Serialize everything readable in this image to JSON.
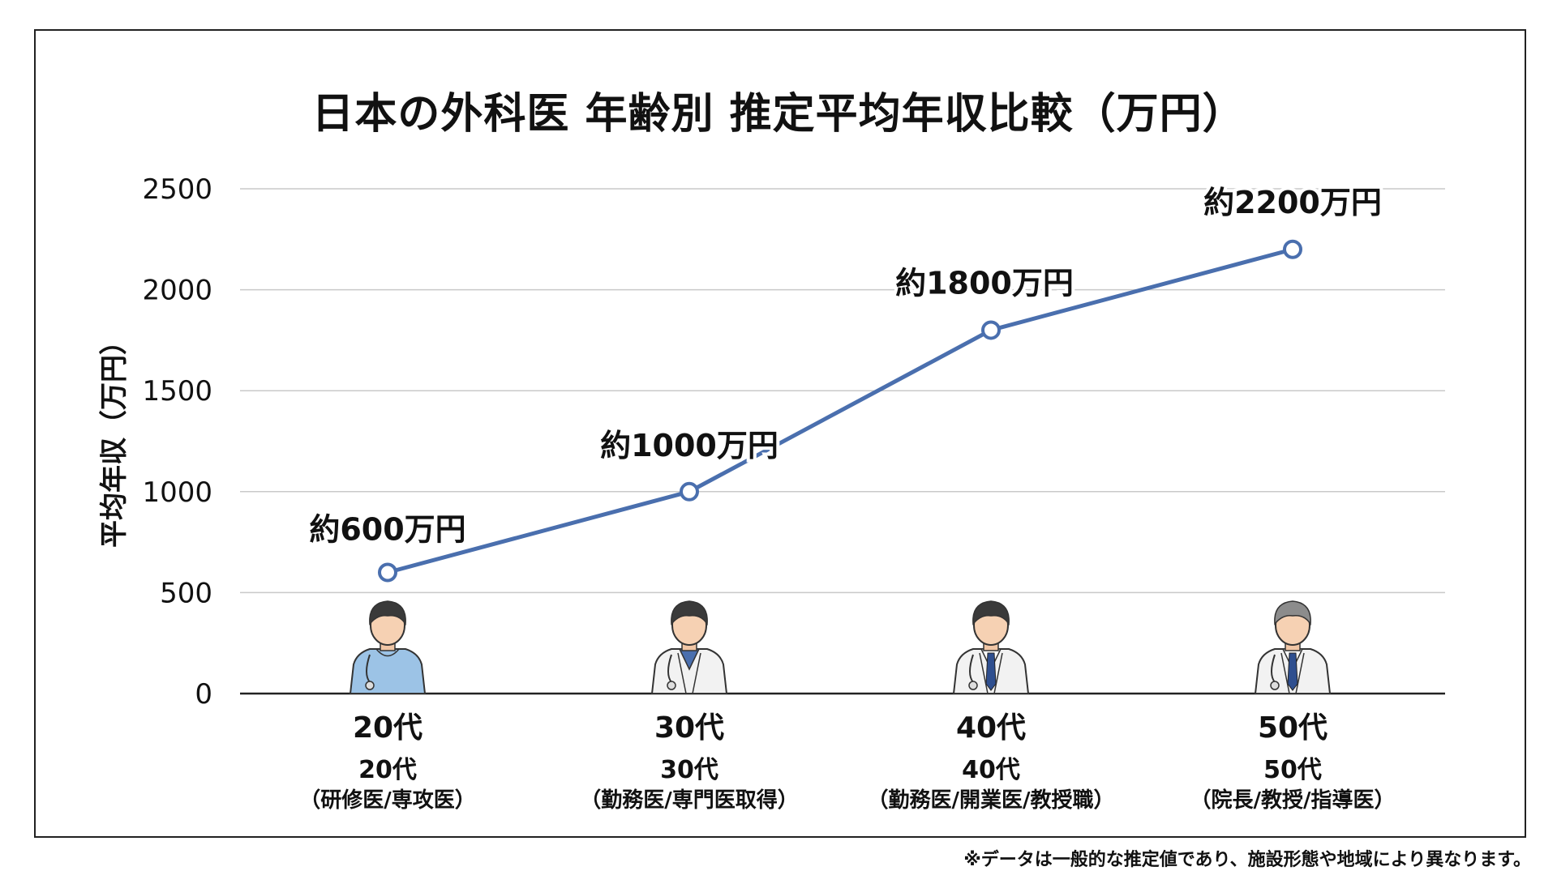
{
  "chart_data": {
    "type": "line",
    "title": "日本の外科医 年齢別 推定平均年収比較（万円）",
    "ylabel": "平均年収（万円）",
    "xlabel": "",
    "ylim": [
      0,
      2500
    ],
    "yticks": [
      0,
      500,
      1000,
      1500,
      2000,
      2500
    ],
    "grid": true,
    "categories": [
      "20代",
      "30代",
      "40代",
      "50代"
    ],
    "category_sublabels": [
      {
        "line1": "20代",
        "line2": "（研修医/専攻医）"
      },
      {
        "line1": "30代",
        "line2": "（勤務医/専門医取得）"
      },
      {
        "line1": "40代",
        "line2": "（勤務医/開業医/教授職）"
      },
      {
        "line1": "50代",
        "line2": "（院長/教授/指導医）"
      }
    ],
    "series": [
      {
        "values": [
          600,
          1000,
          1800,
          2200
        ],
        "data_labels": [
          "約600万円",
          "約1000万円",
          "約1800万円",
          "約2200万円"
        ]
      }
    ],
    "line_color": "#4a6fae",
    "icons": [
      "doctor-young-scrubs-icon",
      "doctor-icon",
      "doctor-tie-icon",
      "doctor-gray-hair-icon"
    ],
    "footnote": "※データは一般的な推定値であり、施設形態や地域により異なります。"
  }
}
